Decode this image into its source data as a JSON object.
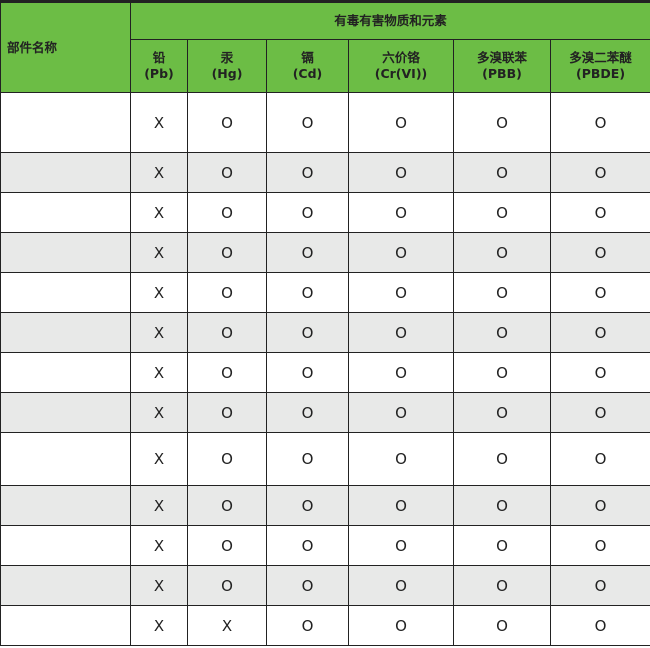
{
  "header": {
    "part_name": "部件名称",
    "group_title": "有毒有害物质和元素",
    "columns": [
      {
        "name": "铅",
        "symbol": "(Pb)"
      },
      {
        "name": "汞",
        "symbol": "(Hg)"
      },
      {
        "name": "镉",
        "symbol": "(Cd)"
      },
      {
        "name": "六价铬",
        "symbol": "(Cr(VI))"
      },
      {
        "name": "多溴联苯",
        "symbol": "(PBB)"
      },
      {
        "name": "多溴二苯醚",
        "symbol": "(PBDE)"
      }
    ]
  },
  "colors": {
    "header_bg": "#6cbd45",
    "alt_row_bg": "#e8e9e8"
  },
  "rows": [
    {
      "part": "",
      "values": [
        "X",
        "O",
        "O",
        "O",
        "O",
        "O"
      ]
    },
    {
      "part": "",
      "values": [
        "X",
        "O",
        "O",
        "O",
        "O",
        "O"
      ]
    },
    {
      "part": "",
      "values": [
        "X",
        "O",
        "O",
        "O",
        "O",
        "O"
      ]
    },
    {
      "part": "",
      "values": [
        "X",
        "O",
        "O",
        "O",
        "O",
        "O"
      ]
    },
    {
      "part": "",
      "values": [
        "X",
        "O",
        "O",
        "O",
        "O",
        "O"
      ]
    },
    {
      "part": "",
      "values": [
        "X",
        "O",
        "O",
        "O",
        "O",
        "O"
      ]
    },
    {
      "part": "",
      "values": [
        "X",
        "O",
        "O",
        "O",
        "O",
        "O"
      ]
    },
    {
      "part": "",
      "values": [
        "X",
        "O",
        "O",
        "O",
        "O",
        "O"
      ]
    },
    {
      "part": "",
      "values": [
        "X",
        "O",
        "O",
        "O",
        "O",
        "O"
      ]
    },
    {
      "part": "",
      "values": [
        "X",
        "O",
        "O",
        "O",
        "O",
        "O"
      ]
    },
    {
      "part": "",
      "values": [
        "X",
        "O",
        "O",
        "O",
        "O",
        "O"
      ]
    },
    {
      "part": "",
      "values": [
        "X",
        "O",
        "O",
        "O",
        "O",
        "O"
      ]
    },
    {
      "part": "",
      "values": [
        "X",
        "X",
        "O",
        "O",
        "O",
        "O"
      ]
    }
  ]
}
